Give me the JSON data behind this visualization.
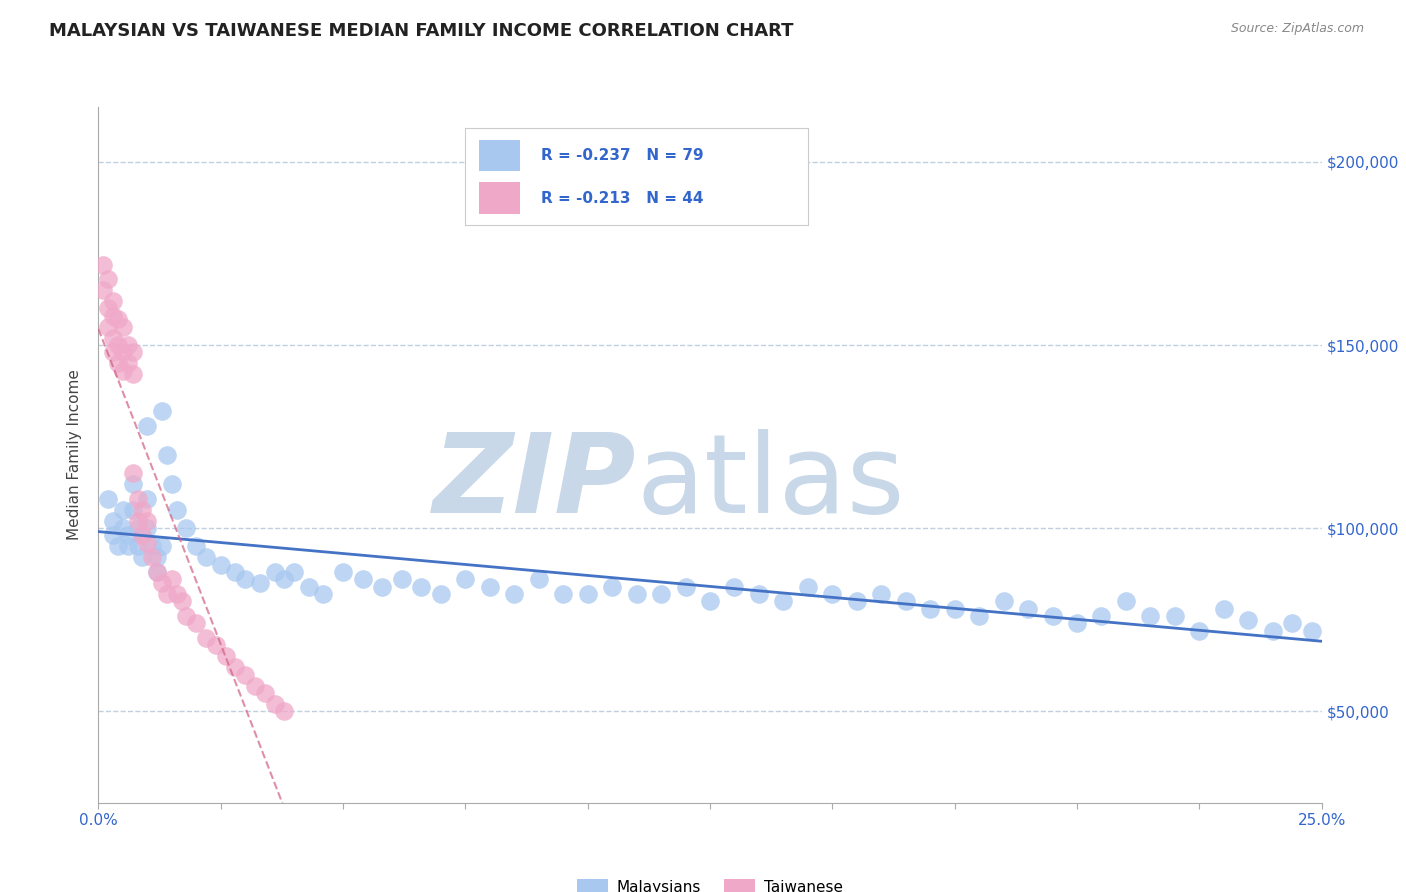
{
  "title": "MALAYSIAN VS TAIWANESE MEDIAN FAMILY INCOME CORRELATION CHART",
  "source_text": "Source: ZipAtlas.com",
  "ylabel": "Median Family Income",
  "xlim": [
    0.0,
    0.25
  ],
  "ylim": [
    25000,
    215000
  ],
  "yticks": [
    50000,
    100000,
    150000,
    200000
  ],
  "ytick_labels": [
    "$50,000",
    "$100,000",
    "$150,000",
    "$200,000"
  ],
  "xticks": [
    0.0,
    0.025,
    0.05,
    0.075,
    0.1,
    0.125,
    0.15,
    0.175,
    0.2,
    0.225,
    0.25
  ],
  "xtick_labels": [
    "0.0%",
    "",
    "",
    "",
    "",
    "",
    "",
    "",
    "",
    "",
    "25.0%"
  ],
  "malaysian_R": -0.237,
  "malaysian_N": 79,
  "taiwanese_R": -0.213,
  "taiwanese_N": 44,
  "malaysian_color": "#a8c8f0",
  "taiwanese_color": "#f0a8c8",
  "malaysian_line_color": "#4472c4",
  "taiwanese_line_color": "#d06080",
  "watermark_zip_color": "#c8d8e8",
  "watermark_atlas_color": "#c8d8e8",
  "background_color": "#ffffff",
  "grid_color": "#c0d0e0",
  "malaysian_x": [
    0.002,
    0.003,
    0.003,
    0.004,
    0.005,
    0.005,
    0.006,
    0.006,
    0.007,
    0.007,
    0.008,
    0.008,
    0.009,
    0.009,
    0.01,
    0.01,
    0.011,
    0.012,
    0.012,
    0.013,
    0.014,
    0.015,
    0.016,
    0.018,
    0.02,
    0.022,
    0.025,
    0.028,
    0.03,
    0.033,
    0.036,
    0.038,
    0.04,
    0.043,
    0.046,
    0.05,
    0.054,
    0.058,
    0.062,
    0.066,
    0.07,
    0.075,
    0.08,
    0.085,
    0.09,
    0.095,
    0.1,
    0.105,
    0.11,
    0.115,
    0.12,
    0.125,
    0.13,
    0.135,
    0.14,
    0.145,
    0.15,
    0.155,
    0.16,
    0.165,
    0.17,
    0.175,
    0.18,
    0.185,
    0.19,
    0.195,
    0.2,
    0.205,
    0.21,
    0.215,
    0.22,
    0.225,
    0.23,
    0.235,
    0.24,
    0.244,
    0.248,
    0.01,
    0.013
  ],
  "malaysian_y": [
    108000,
    102000,
    98000,
    95000,
    105000,
    100000,
    98000,
    95000,
    112000,
    105000,
    100000,
    95000,
    98000,
    92000,
    108000,
    100000,
    95000,
    92000,
    88000,
    95000,
    120000,
    112000,
    105000,
    100000,
    95000,
    92000,
    90000,
    88000,
    86000,
    85000,
    88000,
    86000,
    88000,
    84000,
    82000,
    88000,
    86000,
    84000,
    86000,
    84000,
    82000,
    86000,
    84000,
    82000,
    86000,
    82000,
    82000,
    84000,
    82000,
    82000,
    84000,
    80000,
    84000,
    82000,
    80000,
    84000,
    82000,
    80000,
    82000,
    80000,
    78000,
    78000,
    76000,
    80000,
    78000,
    76000,
    74000,
    76000,
    80000,
    76000,
    76000,
    72000,
    78000,
    75000,
    72000,
    74000,
    72000,
    128000,
    132000
  ],
  "taiwanese_x": [
    0.001,
    0.001,
    0.002,
    0.002,
    0.002,
    0.003,
    0.003,
    0.003,
    0.003,
    0.004,
    0.004,
    0.004,
    0.005,
    0.005,
    0.005,
    0.006,
    0.006,
    0.007,
    0.007,
    0.007,
    0.008,
    0.008,
    0.009,
    0.009,
    0.01,
    0.01,
    0.011,
    0.012,
    0.013,
    0.014,
    0.015,
    0.016,
    0.017,
    0.018,
    0.02,
    0.022,
    0.024,
    0.026,
    0.028,
    0.03,
    0.032,
    0.034,
    0.036,
    0.038
  ],
  "taiwanese_y": [
    172000,
    165000,
    168000,
    160000,
    155000,
    162000,
    158000,
    152000,
    148000,
    157000,
    150000,
    145000,
    155000,
    148000,
    143000,
    150000,
    145000,
    148000,
    142000,
    115000,
    108000,
    102000,
    105000,
    98000,
    102000,
    96000,
    92000,
    88000,
    85000,
    82000,
    86000,
    82000,
    80000,
    76000,
    74000,
    70000,
    68000,
    65000,
    62000,
    60000,
    57000,
    55000,
    52000,
    50000
  ],
  "legend_label1": "R = -0.237   N = 79",
  "legend_label2": "R = -0.213   N = 44"
}
